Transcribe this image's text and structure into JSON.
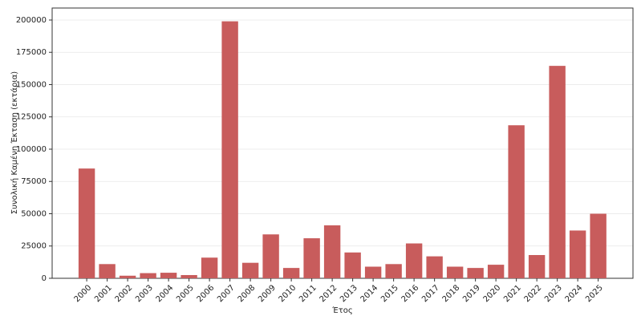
{
  "chart_data": {
    "type": "bar",
    "ylabel": "Συνολική Καμένη Έκταση (εκτάρια)",
    "xlabel": "Έτος",
    "categories": [
      "2000",
      "2001",
      "2002",
      "2003",
      "2004",
      "2005",
      "2006",
      "2007",
      "2008",
      "2009",
      "2010",
      "2011",
      "2012",
      "2013",
      "2014",
      "2015",
      "2016",
      "2017",
      "2018",
      "2019",
      "2020",
      "2021",
      "2022",
      "2023",
      "2024",
      "2025"
    ],
    "values": [
      85000,
      11000,
      2000,
      4000,
      4300,
      2500,
      16000,
      199000,
      12000,
      34000,
      8000,
      31000,
      41000,
      20000,
      9000,
      11000,
      27000,
      17000,
      9000,
      8000,
      10500,
      118500,
      18000,
      164500,
      37000,
      50000
    ],
    "color": "#c85c5c",
    "ylim": [
      0,
      209300
    ],
    "yticks": [
      0,
      25000,
      50000,
      75000,
      100000,
      125000,
      150000,
      175000,
      200000
    ],
    "grid": true
  }
}
